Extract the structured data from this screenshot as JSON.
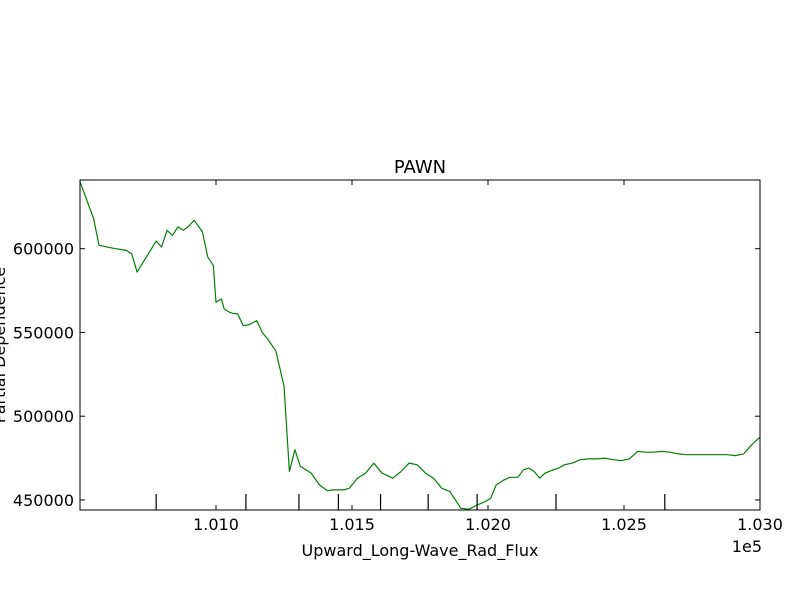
{
  "chart_data": {
    "type": "line",
    "title": "PAWN",
    "xlabel": "Upward_Long-Wave_Rad_Flux",
    "ylabel": "Partial Dependence",
    "x_offset_label": "1e5",
    "xlim": [
      100500,
      103000
    ],
    "ylim": [
      444000,
      641000
    ],
    "x_ticks": [
      101000,
      101500,
      102000,
      102500,
      103000
    ],
    "x_tick_labels": [
      "1.010",
      "1.015",
      "1.020",
      "1.025",
      "1.030"
    ],
    "y_ticks": [
      450000,
      500000,
      550000,
      600000
    ],
    "y_tick_labels": [
      "450000",
      "500000",
      "550000",
      "600000"
    ],
    "rug_x": [
      100780,
      101110,
      101305,
      101450,
      101605,
      101780,
      101960,
      102250,
      102650
    ],
    "grid": false,
    "line_color": "#008000",
    "series": [
      {
        "x": [
          100500,
          100550,
          100570,
          100630,
          100650,
          100670,
          100690,
          100710,
          100780,
          100800,
          100820,
          100840,
          100860,
          100880,
          100900,
          100920,
          100950,
          100970,
          100990,
          101000,
          101020,
          101030,
          101050,
          101060,
          101080,
          101100,
          101120,
          101150,
          101170,
          101190,
          101220,
          101250,
          101270,
          101290,
          101310,
          101330,
          101350,
          101380,
          101410,
          101430,
          101450,
          101470,
          101490,
          101520,
          101550,
          101580,
          101610,
          101650,
          101680,
          101710,
          101740,
          101770,
          101800,
          101830,
          101860,
          101880,
          101900,
          101930,
          101960,
          101990,
          102010,
          102030,
          102060,
          102080,
          102110,
          102130,
          102150,
          102170,
          102190,
          102210,
          102240,
          102260,
          102280,
          102310,
          102340,
          102370,
          102400,
          102430,
          102460,
          102490,
          102520,
          102550,
          102580,
          102610,
          102640,
          102670,
          102700,
          102730,
          102760,
          102790,
          102820,
          102850,
          102880,
          102910,
          102940,
          102970,
          103000
        ],
        "y": [
          640000,
          618000,
          602000,
          600000,
          599500,
          599000,
          597000,
          586000,
          604500,
          601000,
          611000,
          608000,
          613000,
          611000,
          613500,
          617000,
          610000,
          595000,
          590000,
          568000,
          570000,
          564000,
          562000,
          561500,
          561000,
          554000,
          554500,
          557000,
          550000,
          546000,
          539000,
          518000,
          467000,
          480000,
          470000,
          468000,
          466000,
          459000,
          455500,
          456000,
          456000,
          456000,
          457000,
          463000,
          466000,
          472000,
          466000,
          463000,
          467000,
          472000,
          471000,
          466000,
          463000,
          457000,
          455000,
          450000,
          445000,
          444500,
          447000,
          449000,
          451000,
          459000,
          462000,
          463500,
          463500,
          468000,
          469000,
          467000,
          463000,
          466000,
          468000,
          469000,
          471000,
          472000,
          474000,
          474500,
          474500,
          475000,
          474000,
          473500,
          474500,
          479000,
          478500,
          478500,
          479000,
          478500,
          477500,
          477000,
          477000,
          477000,
          477000,
          477000,
          477000,
          476500,
          477500,
          483000,
          487500
        ]
      }
    ]
  }
}
